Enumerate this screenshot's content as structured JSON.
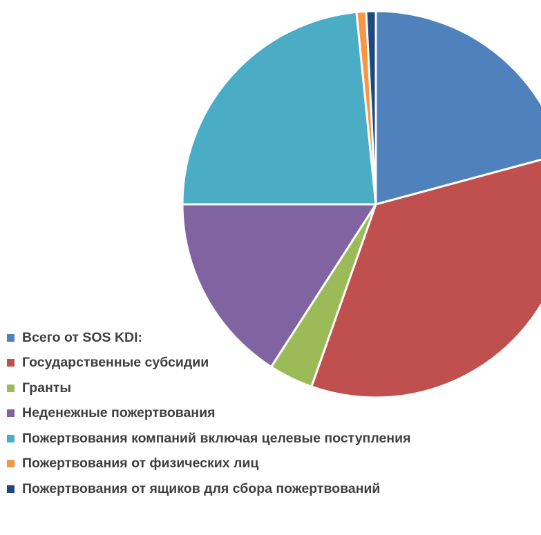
{
  "chart_data": {
    "type": "pie",
    "legend_position": "bottom-left",
    "start_angle_deg": 0,
    "direction": "clockwise",
    "series": [
      {
        "name": "Всего от SOS KDI:",
        "value": 20.8,
        "color": "#4F81BD"
      },
      {
        "name": "Государственные субсидии",
        "value": 34.6,
        "color": "#C0504D"
      },
      {
        "name": "Гранты",
        "value": 3.7,
        "color": "#9BBB59"
      },
      {
        "name": "Неденежные пожертвования",
        "value": 15.9,
        "color": "#8064A2"
      },
      {
        "name": "Пожертвования компаний включая целевые поступления",
        "value": 23.4,
        "color": "#4BACC6"
      },
      {
        "name": "Пожертвования от физических лиц",
        "value": 0.8,
        "color": "#F79646"
      },
      {
        "name": "Пожертвования от ящиков для сбора пожертвований",
        "value": 0.8,
        "color": "#1F497D"
      }
    ]
  }
}
